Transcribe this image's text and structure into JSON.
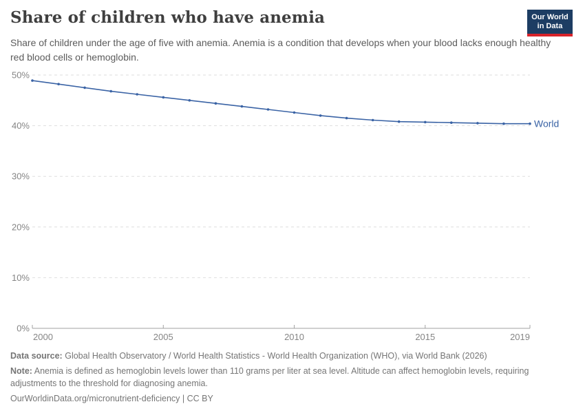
{
  "header": {
    "title": "Share of children who have anemia",
    "subtitle": "Share of children under the age of five with anemia. Anemia is a condition that develops when your blood lacks enough healthy red blood cells or hemoglobin.",
    "logo": {
      "line1": "Our World",
      "line2": "in Data",
      "bg_color": "#1d3d63",
      "accent_color": "#d8232a"
    }
  },
  "chart_data": {
    "type": "line",
    "title": "Share of children who have anemia",
    "x": [
      2000,
      2001,
      2002,
      2003,
      2004,
      2005,
      2006,
      2007,
      2008,
      2009,
      2010,
      2011,
      2012,
      2013,
      2014,
      2015,
      2016,
      2017,
      2018,
      2019
    ],
    "series": [
      {
        "name": "World",
        "color": "#3a63a5",
        "values": [
          48.9,
          48.2,
          47.5,
          46.8,
          46.2,
          45.6,
          45.0,
          44.4,
          43.8,
          43.2,
          42.6,
          42.0,
          41.5,
          41.1,
          40.8,
          40.7,
          40.6,
          40.5,
          40.4,
          40.4
        ]
      }
    ],
    "xlim": [
      2000,
      2019
    ],
    "ylim": [
      0,
      50
    ],
    "xticks": [
      2000,
      2005,
      2010,
      2015,
      2019
    ],
    "yticks": [
      {
        "value": 0,
        "label": "0%"
      },
      {
        "value": 10,
        "label": "10%"
      },
      {
        "value": 20,
        "label": "20%"
      },
      {
        "value": 30,
        "label": "30%"
      },
      {
        "value": 40,
        "label": "40%"
      },
      {
        "value": 50,
        "label": "50%"
      }
    ],
    "grid": "horizontal-dashed",
    "legend": "end-of-line-label",
    "colors": {
      "grid": "#dedede",
      "axis": "#a1a1a1",
      "tick_label": "#858585"
    }
  },
  "footer": {
    "data_source_label": "Data source:",
    "data_source_text": "Global Health Observatory / World Health Statistics - World Health Organization (WHO), via World Bank (2026)",
    "note_label": "Note:",
    "note_text": "Anemia is defined as hemoglobin levels lower than 110 grams per liter at sea level. Altitude can affect hemoglobin levels, requiring adjustments to the threshold for diagnosing anemia.",
    "citation": "OurWorldinData.org/micronutrient-deficiency | CC BY"
  }
}
